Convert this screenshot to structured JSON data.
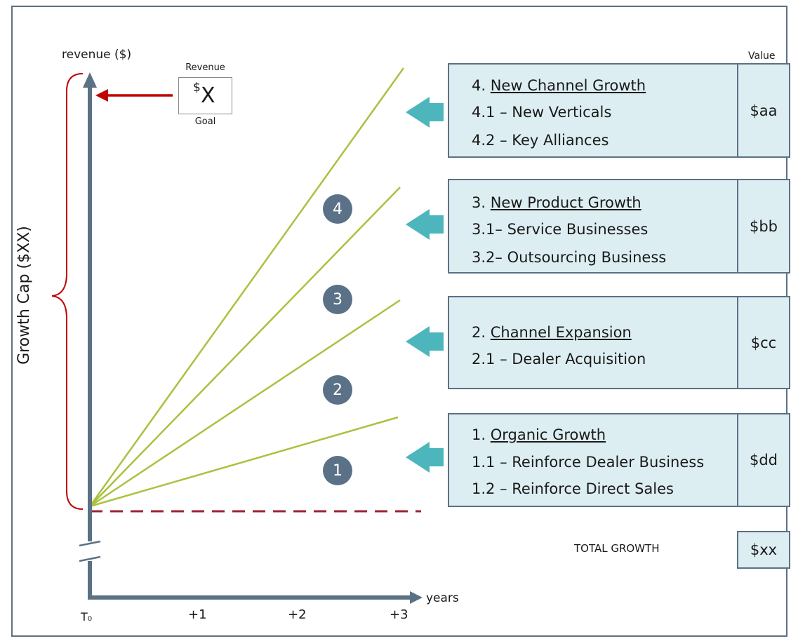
{
  "axes": {
    "y_label": "revenue ($)",
    "x_label": "years",
    "x_ticks": [
      "T₀",
      "+1",
      "+2",
      "+3"
    ]
  },
  "goal": {
    "top_label": "Revenue",
    "sup": "$",
    "value": "X",
    "bottom_label": "Goal"
  },
  "growth_cap_label": "Growth Cap ($XX)",
  "value_header": "Value",
  "badges": [
    "4",
    "3",
    "2",
    "1"
  ],
  "boxes": [
    {
      "heading_num": "4. ",
      "heading": "New Channel Growth",
      "lines": [
        "4.1 – New Verticals",
        "4.2 – Key Alliances"
      ],
      "value": "$aa"
    },
    {
      "heading_num": "3. ",
      "heading": "New Product Growth",
      "lines": [
        "3.1– Service Businesses",
        "3.2– Outsourcing Business"
      ],
      "value": "$bb"
    },
    {
      "heading_num": "2. ",
      "heading": "Channel Expansion",
      "lines": [
        "2.1 – Dealer Acquisition"
      ],
      "value": "$cc"
    },
    {
      "heading_num": "1. ",
      "heading": "Organic Growth",
      "lines": [
        "1.1 – Reinforce Dealer Business",
        "1.2 – Reinforce Direct Sales"
      ],
      "value": "$dd"
    }
  ],
  "total": {
    "label": "TOTAL GROWTH",
    "value": "$xx"
  },
  "colors": {
    "axis": "#5b7184",
    "growth_line": "#a9c23f",
    "arrow_red": "#c00000",
    "dashed_line": "#9b2335",
    "box_fill": "#ddeef2",
    "box_border": "#5b7184",
    "pointer_arrow": "#4db6bd",
    "badge": "#5a7187"
  }
}
